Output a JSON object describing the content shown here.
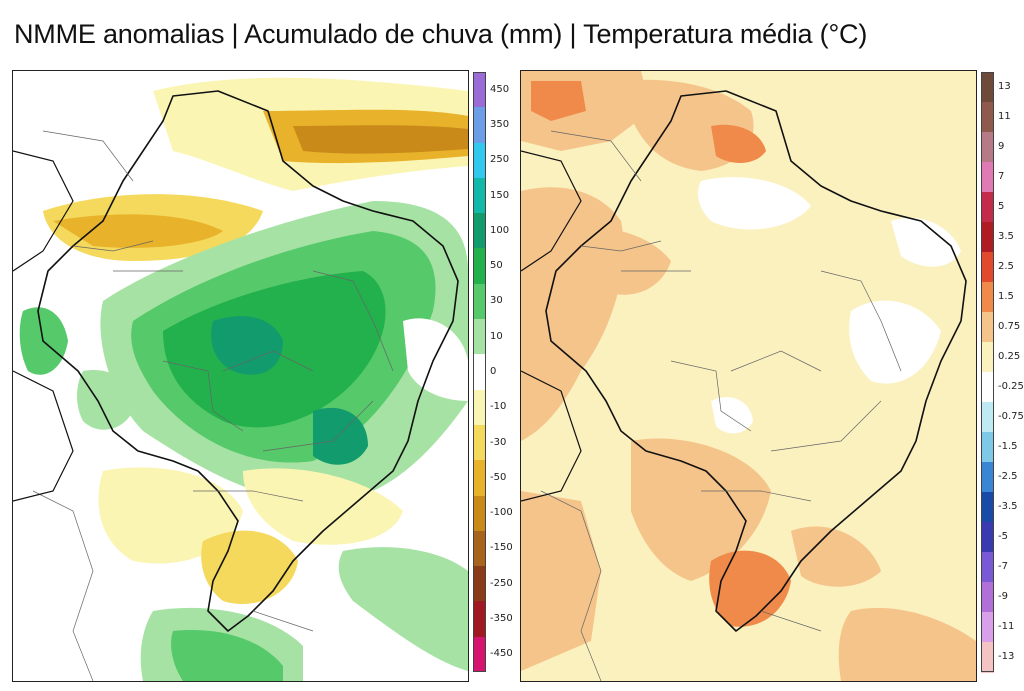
{
  "title": "NMME anomalias | Acumulado de chuva (mm) | Temperatura média (°C)",
  "left_panel": {
    "quantity": "Acumulado de chuva (mm)",
    "colorbar": [
      {
        "label": "450",
        "color": "#9b6bd6"
      },
      {
        "label": "350",
        "color": "#6b9ee6"
      },
      {
        "label": "250",
        "color": "#33c8ee"
      },
      {
        "label": "150",
        "color": "#12b8a8"
      },
      {
        "label": "100",
        "color": "#129b6c"
      },
      {
        "label": "50",
        "color": "#22b14c"
      },
      {
        "label": "30",
        "color": "#56c96a"
      },
      {
        "label": "10",
        "color": "#a6e2a4"
      },
      {
        "label": "0",
        "color": "#ffffff"
      },
      {
        "label": "-10",
        "color": "#fbf5b4"
      },
      {
        "label": "-30",
        "color": "#f4d95c"
      },
      {
        "label": "-50",
        "color": "#e8b22a"
      },
      {
        "label": "-100",
        "color": "#c98a1a"
      },
      {
        "label": "-150",
        "color": "#a8641c"
      },
      {
        "label": "-250",
        "color": "#8a3b1a"
      },
      {
        "label": "-350",
        "color": "#a01822"
      },
      {
        "label": "-450",
        "color": "#d4146e"
      }
    ]
  },
  "right_panel": {
    "quantity": "Temperatura média (°C)",
    "colorbar": [
      {
        "label": "13",
        "color": "#6e4a3a"
      },
      {
        "label": "11",
        "color": "#8e5a4e"
      },
      {
        "label": "9",
        "color": "#b67a86"
      },
      {
        "label": "7",
        "color": "#e07ab4"
      },
      {
        "label": "5",
        "color": "#c42a4a"
      },
      {
        "label": "3.5",
        "color": "#b01c24"
      },
      {
        "label": "2.5",
        "color": "#e24a2e"
      },
      {
        "label": "1.5",
        "color": "#f08a4a"
      },
      {
        "label": "0.75",
        "color": "#f5c48a"
      },
      {
        "label": "0.25",
        "color": "#fbf1bf"
      },
      {
        "label": "-0.25",
        "color": "#ffffff"
      },
      {
        "label": "-0.75",
        "color": "#bfeaf4"
      },
      {
        "label": "-1.5",
        "color": "#7fc8e8"
      },
      {
        "label": "-2.5",
        "color": "#3a86d4"
      },
      {
        "label": "-3.5",
        "color": "#1a4aa8"
      },
      {
        "label": "-5",
        "color": "#3a3ab0"
      },
      {
        "label": "-7",
        "color": "#7a5ad4"
      },
      {
        "label": "-9",
        "color": "#b070d8"
      },
      {
        "label": "-11",
        "color": "#d8a0e8"
      },
      {
        "label": "-13",
        "color": "#f4c4c4"
      }
    ]
  }
}
